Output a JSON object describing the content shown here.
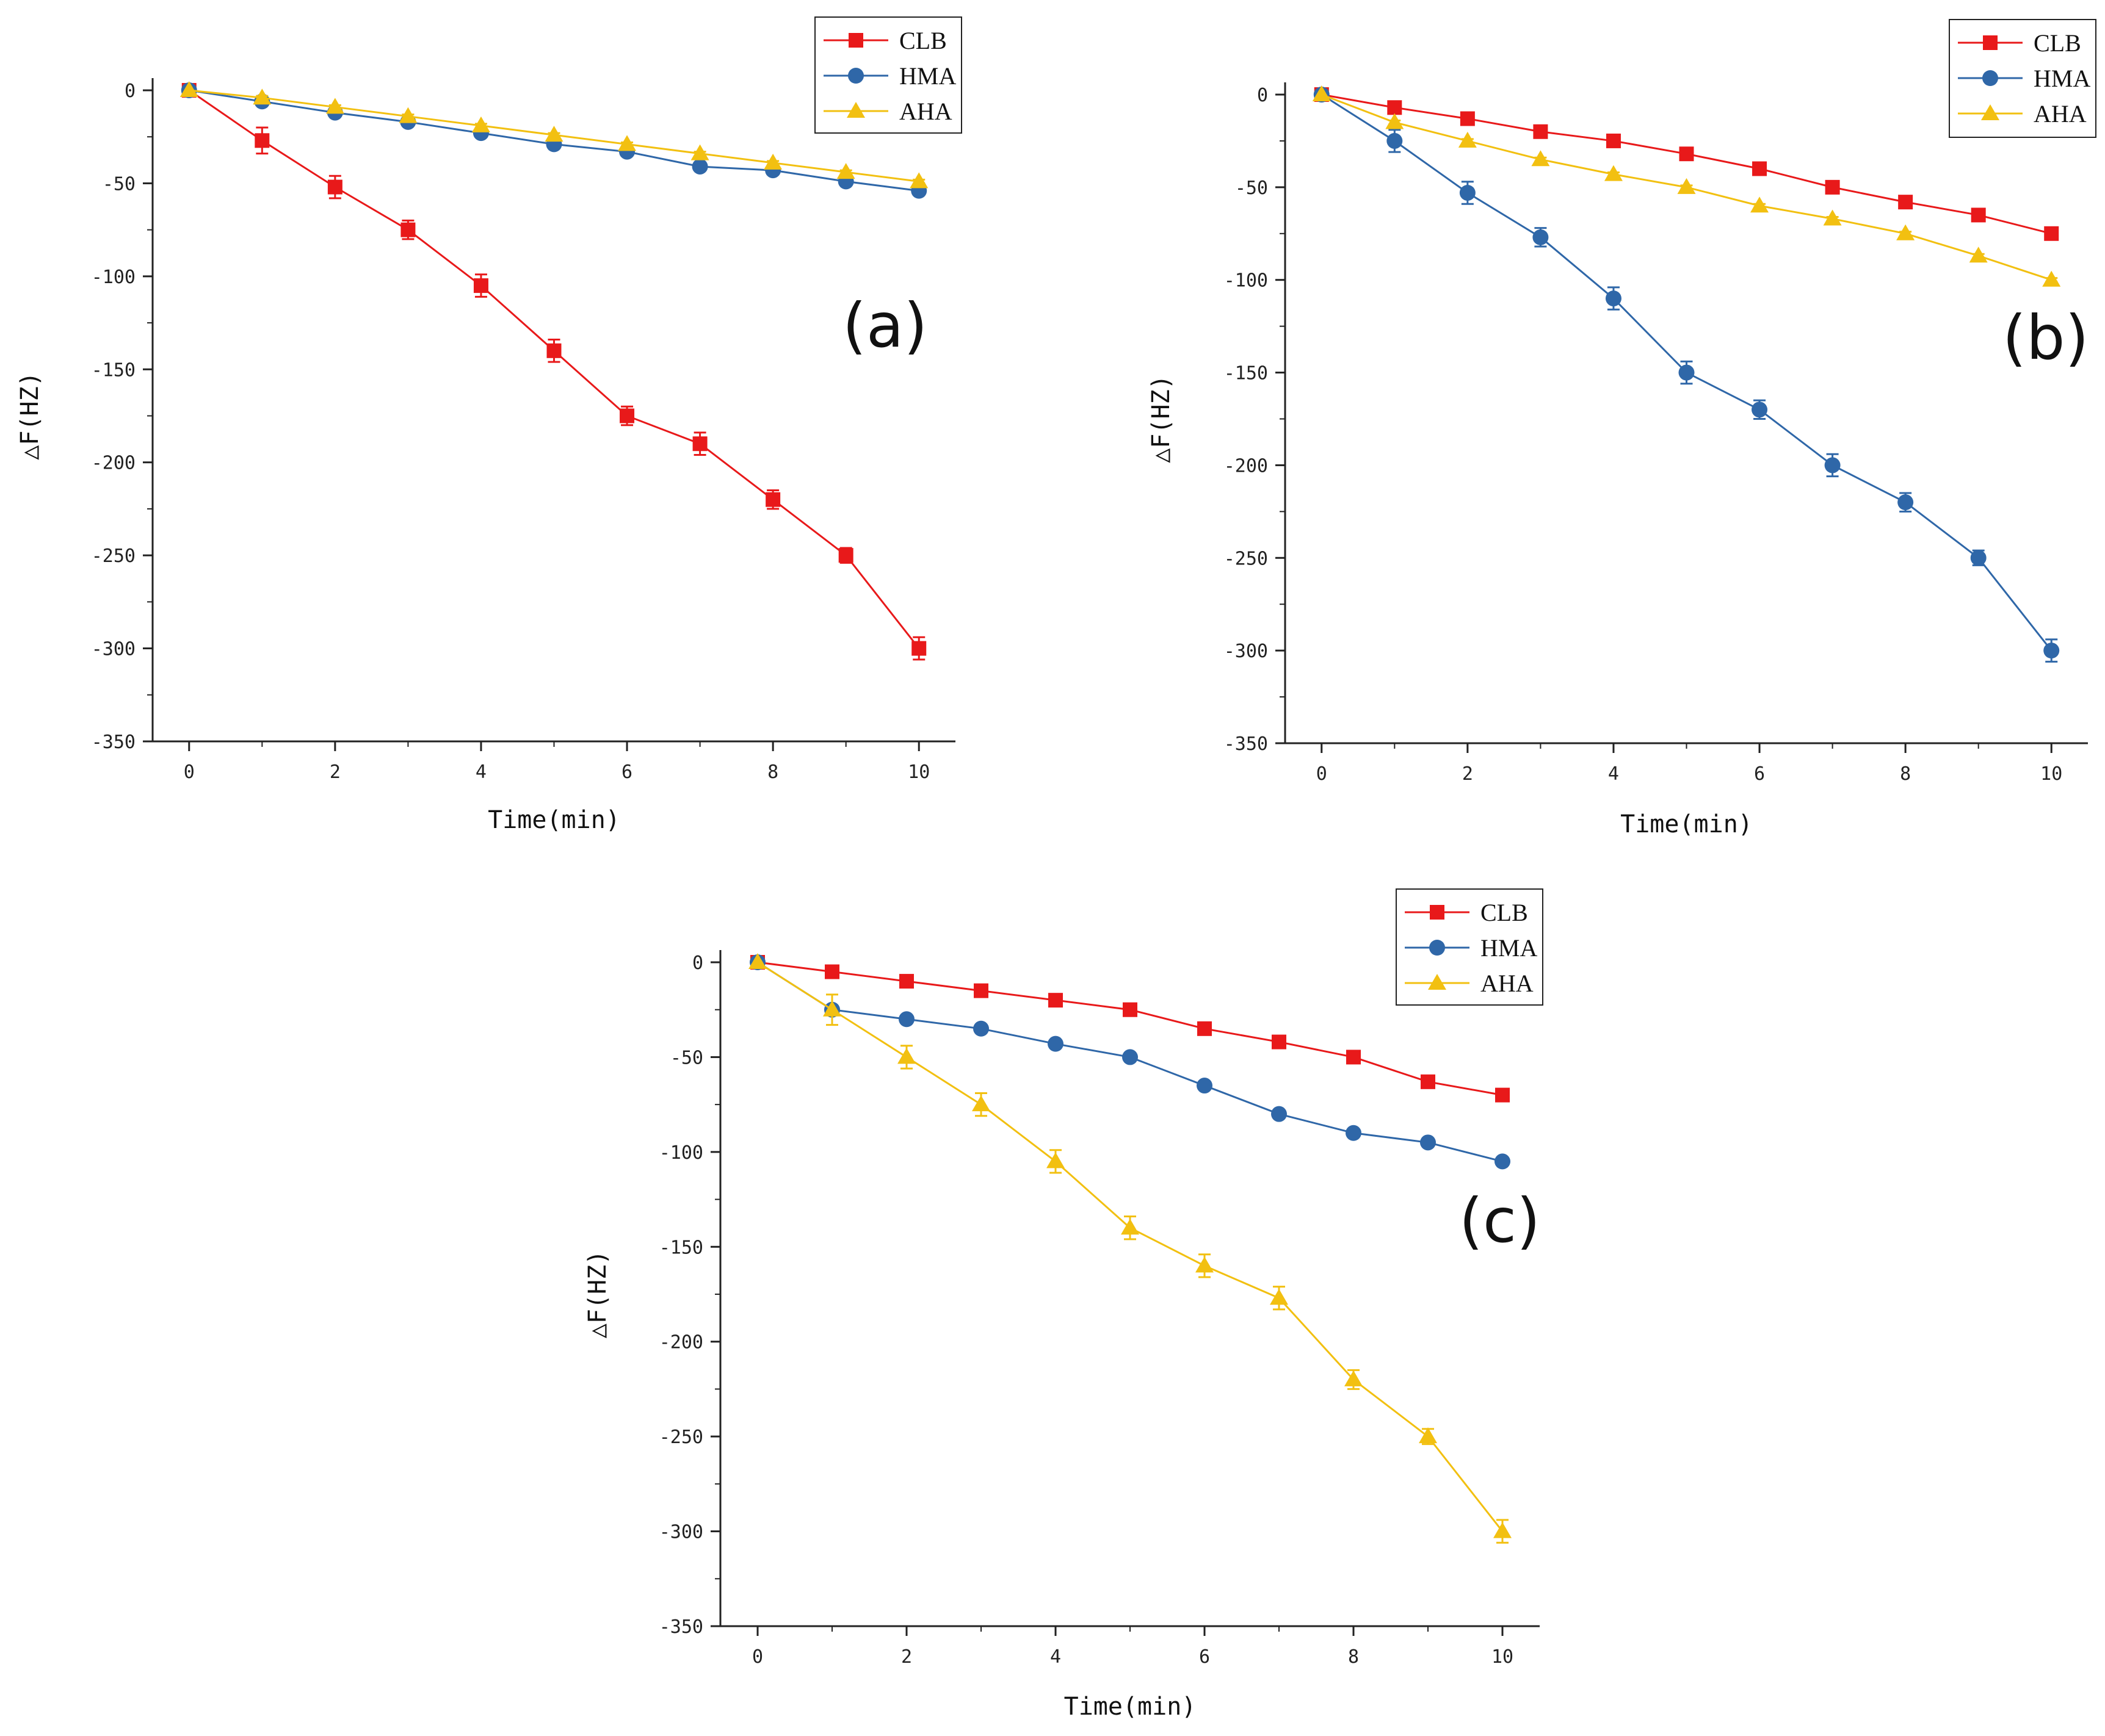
{
  "colors": {
    "CLB": "#e8191a",
    "HMA": "#2f67a8",
    "AHA": "#f2c011"
  },
  "chart_data": [
    {
      "type": "line",
      "panel": "(a)",
      "xlabel": "Time(min)",
      "ylabel": "△F(HZ)",
      "xlim": [
        -0.5,
        10.5
      ],
      "ylim": [
        -350,
        0
      ],
      "xticks": [
        0,
        2,
        4,
        6,
        8,
        10
      ],
      "yticks": [
        0,
        -50,
        -100,
        -150,
        -200,
        -250,
        -300,
        -350
      ],
      "x": [
        0,
        1,
        2,
        3,
        4,
        5,
        6,
        7,
        8,
        9,
        10
      ],
      "series": [
        {
          "name": "CLB",
          "marker": "square",
          "values": [
            0,
            -27,
            -52,
            -75,
            -105,
            -140,
            -175,
            -190,
            -220,
            -250,
            -300
          ],
          "errors": [
            0,
            7,
            6,
            5,
            6,
            6,
            5,
            6,
            5,
            4,
            6
          ]
        },
        {
          "name": "HMA",
          "marker": "circle",
          "values": [
            0,
            -6,
            -12,
            -17,
            -23,
            -29,
            -33,
            -41,
            -43,
            -49,
            -54
          ],
          "errors": [
            0,
            1,
            1,
            1,
            1,
            1,
            1,
            1,
            1,
            1,
            1
          ]
        },
        {
          "name": "AHA",
          "marker": "triangle",
          "values": [
            0,
            -4,
            -9,
            -14,
            -19,
            -24,
            -29,
            -34,
            -39,
            -44,
            -49
          ],
          "errors": [
            0,
            1,
            1,
            1,
            1,
            1,
            1,
            1,
            1,
            1,
            1
          ]
        }
      ]
    },
    {
      "type": "line",
      "panel": "(b)",
      "xlabel": "Time(min)",
      "ylabel": "△F(HZ)",
      "xlim": [
        -0.5,
        10.5
      ],
      "ylim": [
        -350,
        0
      ],
      "xticks": [
        0,
        2,
        4,
        6,
        8,
        10
      ],
      "yticks": [
        0,
        -50,
        -100,
        -150,
        -200,
        -250,
        -300,
        -350
      ],
      "x": [
        0,
        1,
        2,
        3,
        4,
        5,
        6,
        7,
        8,
        9,
        10
      ],
      "series": [
        {
          "name": "CLB",
          "marker": "square",
          "values": [
            0,
            -7,
            -13,
            -20,
            -25,
            -32,
            -40,
            -50,
            -58,
            -65,
            -75
          ],
          "errors": [
            0,
            1,
            1,
            1,
            1,
            1,
            1,
            1,
            1,
            1,
            1
          ]
        },
        {
          "name": "HMA",
          "marker": "circle",
          "values": [
            0,
            -25,
            -53,
            -77,
            -110,
            -150,
            -170,
            -200,
            -220,
            -250,
            -300
          ],
          "errors": [
            0,
            6,
            6,
            5,
            6,
            6,
            5,
            6,
            5,
            4,
            6
          ]
        },
        {
          "name": "AHA",
          "marker": "triangle",
          "values": [
            0,
            -15,
            -25,
            -35,
            -43,
            -50,
            -60,
            -67,
            -75,
            -87,
            -100
          ],
          "errors": [
            0,
            1,
            1,
            1,
            1,
            1,
            1,
            1,
            1,
            1,
            1
          ]
        }
      ]
    },
    {
      "type": "line",
      "panel": "(c)",
      "xlabel": "Time(min)",
      "ylabel": "△F(HZ)",
      "xlim": [
        -0.5,
        10.5
      ],
      "ylim": [
        -350,
        0
      ],
      "xticks": [
        0,
        2,
        4,
        6,
        8,
        10
      ],
      "yticks": [
        0,
        -50,
        -100,
        -150,
        -200,
        -250,
        -300,
        -350
      ],
      "x": [
        0,
        1,
        2,
        3,
        4,
        5,
        6,
        7,
        8,
        9,
        10
      ],
      "series": [
        {
          "name": "CLB",
          "marker": "square",
          "values": [
            0,
            -5,
            -10,
            -15,
            -20,
            -25,
            -35,
            -42,
            -50,
            -63,
            -70
          ],
          "errors": [
            0,
            1,
            1,
            1,
            1,
            1,
            1,
            1,
            1,
            1,
            1
          ]
        },
        {
          "name": "HMA",
          "marker": "circle",
          "values": [
            0,
            -25,
            -30,
            -35,
            -43,
            -50,
            -65,
            -80,
            -90,
            -95,
            -105
          ],
          "errors": [
            0,
            1,
            1,
            1,
            1,
            1,
            1,
            1,
            1,
            1,
            1
          ]
        },
        {
          "name": "AHA",
          "marker": "triangle",
          "values": [
            0,
            -25,
            -50,
            -75,
            -105,
            -140,
            -160,
            -177,
            -220,
            -250,
            -300
          ],
          "errors": [
            0,
            8,
            6,
            6,
            6,
            6,
            6,
            6,
            5,
            4,
            6
          ]
        }
      ]
    }
  ]
}
